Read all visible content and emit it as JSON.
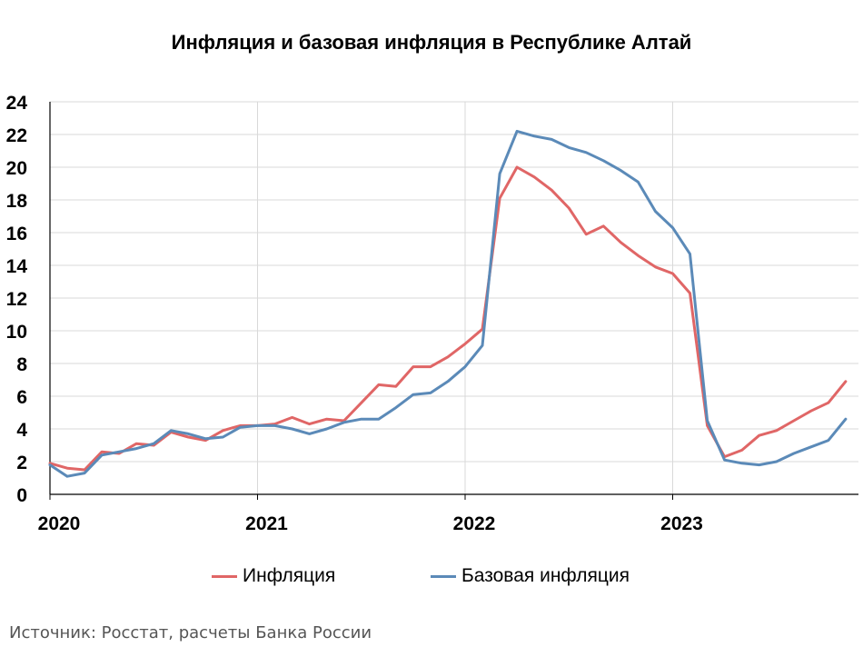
{
  "chart_data": {
    "type": "line",
    "title": "Инфляция и базовая инфляция в Республике Алтай",
    "xlabel": "",
    "ylabel": "",
    "ylim": [
      0,
      24
    ],
    "y_ticks": [
      "0",
      "2",
      "4",
      "6",
      "8",
      "10",
      "12",
      "14",
      "16",
      "18",
      "20",
      "22",
      "24"
    ],
    "x_tick_labels": [
      "2020",
      "2021",
      "2022",
      "2023"
    ],
    "grid": true,
    "legend_position": "bottom",
    "x": [
      "2020-01",
      "2020-02",
      "2020-03",
      "2020-04",
      "2020-05",
      "2020-06",
      "2020-07",
      "2020-08",
      "2020-09",
      "2020-10",
      "2020-11",
      "2020-12",
      "2021-01",
      "2021-02",
      "2021-03",
      "2021-04",
      "2021-05",
      "2021-06",
      "2021-07",
      "2021-08",
      "2021-09",
      "2021-10",
      "2021-11",
      "2021-12",
      "2022-01",
      "2022-02",
      "2022-03",
      "2022-04",
      "2022-05",
      "2022-06",
      "2022-07",
      "2022-08",
      "2022-09",
      "2022-10",
      "2022-11",
      "2022-12",
      "2023-01",
      "2023-02",
      "2023-03",
      "2023-04",
      "2023-05",
      "2023-06",
      "2023-07",
      "2023-08",
      "2023-09",
      "2023-10",
      "2023-11"
    ],
    "series": [
      {
        "name": "Инфляция",
        "color": "#e06666",
        "values": [
          1.9,
          1.6,
          1.5,
          2.6,
          2.5,
          3.1,
          3.0,
          3.8,
          3.5,
          3.3,
          3.9,
          4.2,
          4.2,
          4.3,
          4.7,
          4.3,
          4.6,
          4.5,
          5.6,
          6.7,
          6.6,
          7.8,
          7.8,
          8.4,
          9.2,
          10.1,
          18.1,
          20.0,
          19.4,
          18.6,
          17.5,
          15.9,
          16.4,
          15.4,
          14.6,
          13.9,
          13.5,
          12.3,
          4.2,
          2.3,
          2.7,
          3.6,
          3.9,
          4.5,
          5.1,
          5.6,
          6.9
        ]
      },
      {
        "name": "Базовая инфляция",
        "color": "#5b8ab8",
        "values": [
          1.8,
          1.1,
          1.3,
          2.4,
          2.6,
          2.8,
          3.1,
          3.9,
          3.7,
          3.4,
          3.5,
          4.1,
          4.2,
          4.2,
          4.0,
          3.7,
          4.0,
          4.4,
          4.6,
          4.6,
          5.3,
          6.1,
          6.2,
          6.9,
          7.8,
          9.1,
          19.6,
          22.2,
          21.9,
          21.7,
          21.2,
          20.9,
          20.4,
          19.8,
          19.1,
          17.3,
          16.3,
          14.7,
          4.5,
          2.1,
          1.9,
          1.8,
          2.0,
          2.5,
          2.9,
          3.3,
          4.6
        ]
      }
    ]
  },
  "source": "Источник: Росстат, расчеты Банка России"
}
